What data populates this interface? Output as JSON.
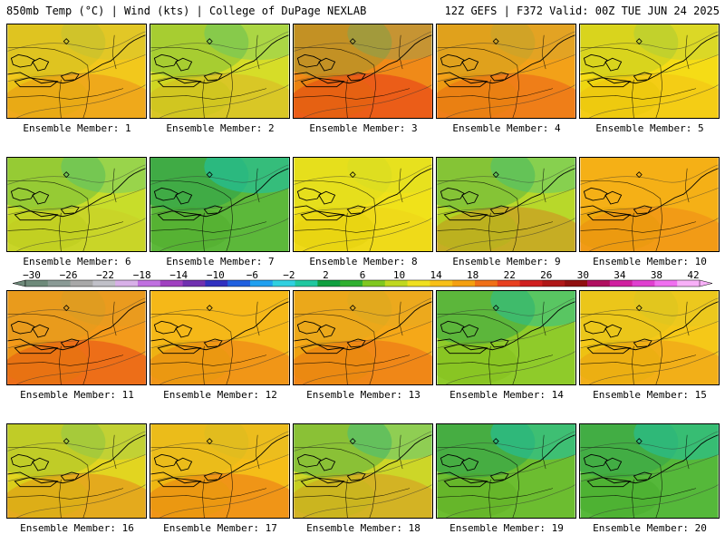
{
  "header": {
    "left": "850mb Temp (°C) | Wind (kts) | College of DuPage NEXLAB",
    "right": "12Z GEFS | F372 Valid: 00Z TUE JUN 24 2025"
  },
  "panels": [
    {
      "label": "Ensemble Member: 1",
      "base": "#f2c81c",
      "warm": 0.25,
      "cool": 0.1
    },
    {
      "label": "Ensemble Member: 2",
      "base": "#d6dd28",
      "warm": 0.15,
      "cool": 0.3
    },
    {
      "label": "Ensemble Member: 3",
      "base": "#f08a18",
      "warm": 0.7,
      "cool": 0.25
    },
    {
      "label": "Ensemble Member: 4",
      "base": "#f3a118",
      "warm": 0.4,
      "cool": 0.1
    },
    {
      "label": "Ensemble Member: 5",
      "base": "#f5dc16",
      "warm": 0.1,
      "cool": 0.15
    },
    {
      "label": "Ensemble Member: 6",
      "base": "#c8dd2a",
      "warm": 0.05,
      "cool": 0.35
    },
    {
      "label": "Ensemble Member: 7",
      "base": "#5cb83a",
      "warm": 0.0,
      "cool": 0.8
    },
    {
      "label": "Ensemble Member: 8",
      "base": "#f0e21a",
      "warm": 0.05,
      "cool": 0.05
    },
    {
      "label": "Ensemble Member: 9",
      "base": "#b8d82a",
      "warm": 0.3,
      "cool": 0.4
    },
    {
      "label": "Ensemble Member: 10",
      "base": "#f5b016",
      "warm": 0.2,
      "cool": 0.0
    },
    {
      "label": "Ensemble Member: 11",
      "base": "#f39a1a",
      "warm": 0.55,
      "cool": 0.05
    },
    {
      "label": "Ensemble Member: 12",
      "base": "#f5b818",
      "warm": 0.3,
      "cool": 0.0
    },
    {
      "label": "Ensemble Member: 13",
      "base": "#f5a818",
      "warm": 0.35,
      "cool": 0.05
    },
    {
      "label": "Ensemble Member: 14",
      "base": "#8fcb2a",
      "warm": 0.0,
      "cool": 0.6
    },
    {
      "label": "Ensemble Member: 15",
      "base": "#f5c818",
      "warm": 0.2,
      "cool": 0.05
    },
    {
      "label": "Ensemble Member: 16",
      "base": "#e2d520",
      "warm": 0.3,
      "cool": 0.2
    },
    {
      "label": "Ensemble Member: 17",
      "base": "#f5bd18",
      "warm": 0.35,
      "cool": 0.05
    },
    {
      "label": "Ensemble Member: 18",
      "base": "#cdd628",
      "warm": 0.25,
      "cool": 0.45
    },
    {
      "label": "Ensemble Member: 19",
      "base": "#6cbd30",
      "warm": 0.0,
      "cool": 0.75
    },
    {
      "label": "Ensemble Member: 20",
      "base": "#55b83a",
      "warm": 0.0,
      "cool": 0.7
    }
  ],
  "colorbar": {
    "labels": [
      "−30",
      "−26",
      "−22",
      "−18",
      "−14",
      "−10",
      "−6",
      "−2",
      "2",
      "6",
      "10",
      "14",
      "18",
      "22",
      "26",
      "30",
      "34",
      "38",
      "42"
    ],
    "colors": [
      "#6e8a7a",
      "#8a9a95",
      "#a8a8a8",
      "#c0c0c8",
      "#d8b0e8",
      "#c070e0",
      "#a040c0",
      "#7030b0",
      "#3030c0",
      "#2060e0",
      "#20a0f0",
      "#30d0e0",
      "#20c8a0",
      "#10a040",
      "#30b030",
      "#80c820",
      "#c0d820",
      "#f0e020",
      "#f8c018",
      "#f5a010",
      "#f07018",
      "#e84020",
      "#d02020",
      "#b01818",
      "#901010",
      "#b01060",
      "#d020a0",
      "#e040d0",
      "#f070f0",
      "#f8b0f8"
    ]
  }
}
